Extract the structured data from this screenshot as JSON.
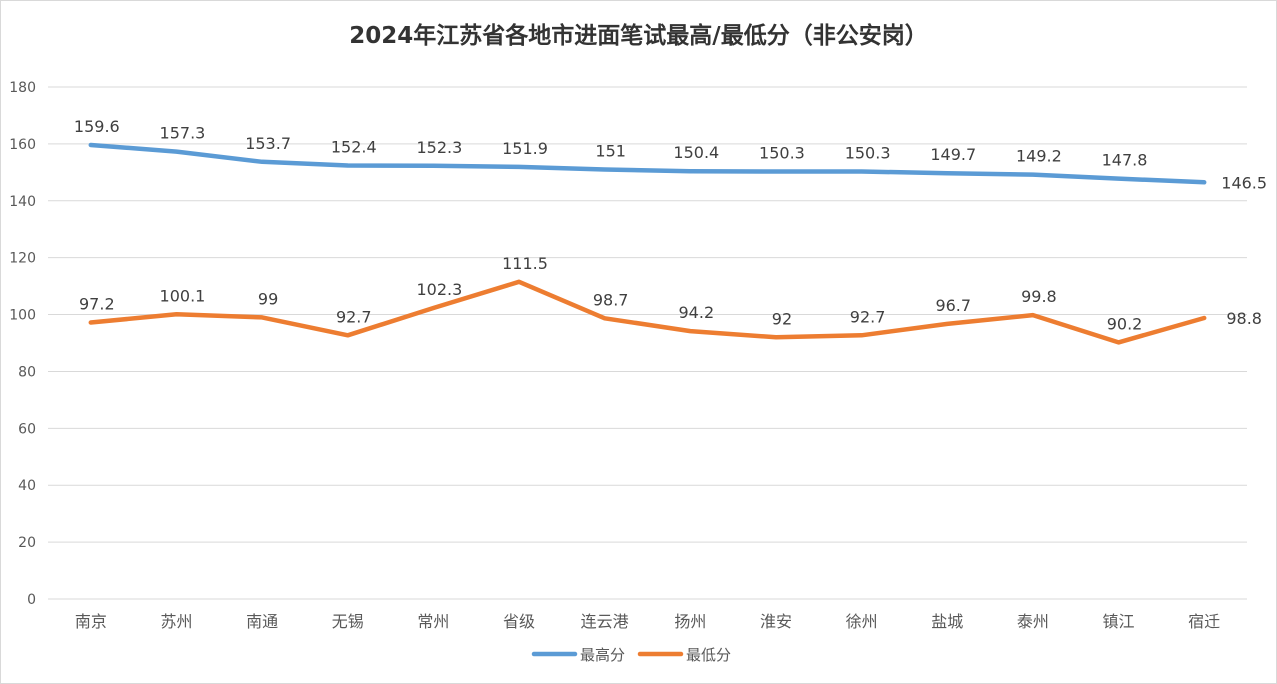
{
  "chart_data": {
    "type": "line",
    "title": "2024年江苏省各地市进面笔试最高/最低分（非公安岗）",
    "xlabel": "",
    "ylabel": "",
    "ylim": [
      0,
      180
    ],
    "yticks": [
      0,
      20,
      40,
      60,
      80,
      100,
      120,
      140,
      160,
      180
    ],
    "grid": true,
    "legend_position": "bottom",
    "categories": [
      "南京",
      "苏州",
      "南通",
      "无锡",
      "常州",
      "省级",
      "连云港",
      "扬州",
      "淮安",
      "徐州",
      "盐城",
      "泰州",
      "镇江",
      "宿迁"
    ],
    "series": [
      {
        "name": "最高分",
        "color": "#5b9bd5",
        "values": [
          159.6,
          157.3,
          153.7,
          152.4,
          152.3,
          151.9,
          151,
          150.4,
          150.3,
          150.3,
          149.7,
          149.2,
          147.8,
          146.5
        ],
        "labels": [
          "159.6",
          "157.3",
          "153.7",
          "152.4",
          "152.3",
          "151.9",
          "151",
          "150.4",
          "150.3",
          "150.3",
          "149.7",
          "149.2",
          "147.8",
          "146.5"
        ]
      },
      {
        "name": "最低分",
        "color": "#ed7d31",
        "values": [
          97.2,
          100.1,
          99,
          92.7,
          102.3,
          111.5,
          98.7,
          94.2,
          92,
          92.7,
          96.7,
          99.8,
          90.2,
          98.8
        ],
        "labels": [
          "97.2",
          "100.1",
          "99",
          "92.7",
          "102.3",
          "111.5",
          "98.7",
          "94.2",
          "92",
          "92.7",
          "96.7",
          "99.8",
          "90.2",
          "98.8"
        ]
      }
    ]
  }
}
